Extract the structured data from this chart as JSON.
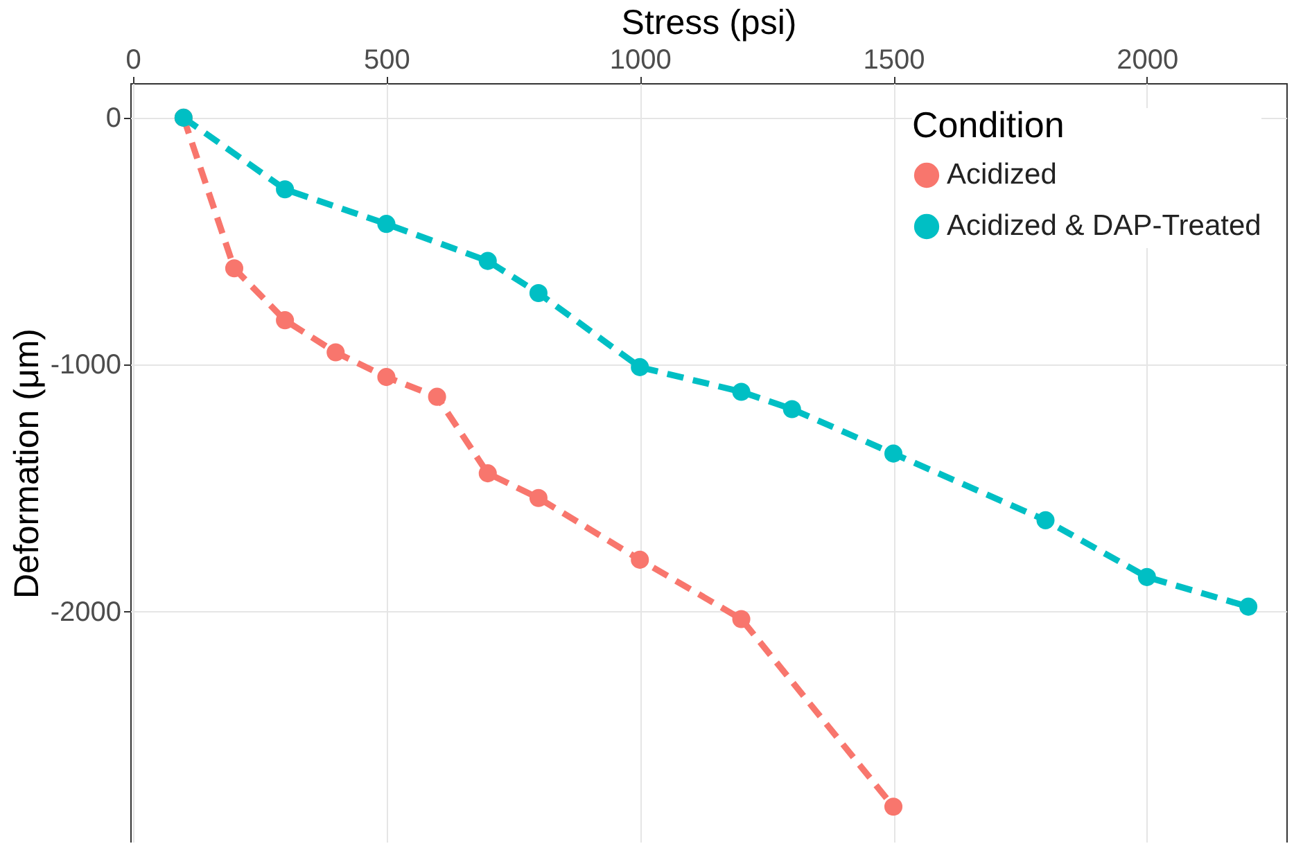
{
  "chart_data": {
    "type": "line",
    "xlabel": "Stress (psi)",
    "ylabel": "Deformation (μm)",
    "legend_title": "Condition",
    "xlim": [
      -5,
      2275
    ],
    "ylim": [
      -2935,
      140
    ],
    "xticks": [
      0,
      500,
      1000,
      1500,
      2000
    ],
    "yticks": [
      -2000,
      -1000,
      0
    ],
    "grid": true,
    "legend": "top right",
    "marker": "circle",
    "line_style": "dashed",
    "series": [
      {
        "name": "Acidized",
        "color": "#f8766d",
        "x": [
          100,
          200,
          300,
          400,
          500,
          600,
          700,
          800,
          1000,
          1200,
          1500
        ],
        "values": [
          0,
          -610,
          -820,
          -950,
          -1050,
          -1130,
          -1440,
          -1540,
          -1790,
          -2030,
          -2790
        ]
      },
      {
        "name": "Acidized & DAP-Treated",
        "color": "#00bfc4",
        "x": [
          100,
          300,
          500,
          700,
          800,
          1000,
          1200,
          1300,
          1500,
          1800,
          2000,
          2200
        ],
        "values": [
          0,
          -290,
          -430,
          -580,
          -710,
          -1010,
          -1110,
          -1180,
          -1360,
          -1630,
          -1860,
          -1980
        ]
      }
    ]
  }
}
